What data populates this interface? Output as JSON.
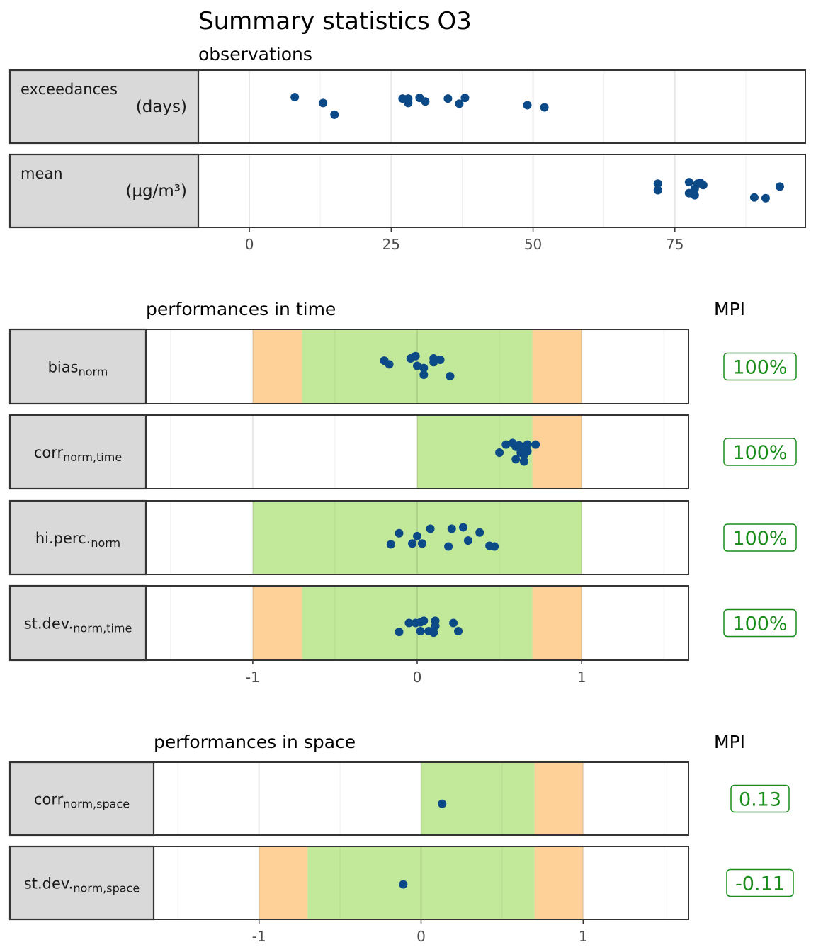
{
  "title": "Summary statistics O3",
  "chart_data": [
    {
      "type": "scatter",
      "title": "observations",
      "x_ticks": [
        "0",
        "25",
        "50",
        "75"
      ],
      "tick_values": [
        0,
        25,
        50,
        75
      ],
      "xlim": [
        -9,
        98
      ],
      "grid": true,
      "panels": [
        {
          "label": "exceedances",
          "unit": "(days)",
          "points": [
            {
              "x": 8,
              "j": 0.37
            },
            {
              "x": 13,
              "j": 0.45
            },
            {
              "x": 15,
              "j": 0.61
            },
            {
              "x": 27,
              "j": 0.39
            },
            {
              "x": 28,
              "j": 0.39
            },
            {
              "x": 28,
              "j": 0.45
            },
            {
              "x": 30,
              "j": 0.38
            },
            {
              "x": 31,
              "j": 0.43
            },
            {
              "x": 35,
              "j": 0.39
            },
            {
              "x": 37,
              "j": 0.46
            },
            {
              "x": 38,
              "j": 0.38
            },
            {
              "x": 49,
              "j": 0.48
            },
            {
              "x": 52,
              "j": 0.51
            }
          ]
        },
        {
          "label": "mean",
          "unit": "(µg/m³)",
          "points": [
            {
              "x": 72,
              "j": 0.4
            },
            {
              "x": 72,
              "j": 0.49
            },
            {
              "x": 77.5,
              "j": 0.38
            },
            {
              "x": 77.5,
              "j": 0.53
            },
            {
              "x": 78.5,
              "j": 0.47
            },
            {
              "x": 78.5,
              "j": 0.56
            },
            {
              "x": 79,
              "j": 0.4
            },
            {
              "x": 79.5,
              "j": 0.39
            },
            {
              "x": 80,
              "j": 0.42
            },
            {
              "x": 89,
              "j": 0.59
            },
            {
              "x": 91,
              "j": 0.6
            },
            {
              "x": 93.5,
              "j": 0.44
            }
          ]
        }
      ]
    },
    {
      "type": "scatter",
      "title": "performances in time",
      "mpi_header": "MPI",
      "x_ticks": [
        "-1",
        "0",
        "1"
      ],
      "tick_values": [
        -1,
        0,
        1
      ],
      "xlim": [
        -1.65,
        1.65
      ],
      "grid": true,
      "panels": [
        {
          "label": "bias",
          "subscript": "norm",
          "mpi": "100%",
          "zones": [
            {
              "from": -1,
              "to": -0.7,
              "color": "#fdd198"
            },
            {
              "from": -0.7,
              "to": 0.7,
              "color": "#c2e899"
            },
            {
              "from": 0.7,
              "to": 1,
              "color": "#fdd198"
            }
          ],
          "points": [
            {
              "x": -0.2,
              "j": 0.42
            },
            {
              "x": -0.17,
              "j": 0.47
            },
            {
              "x": -0.04,
              "j": 0.39
            },
            {
              "x": -0.01,
              "j": 0.36
            },
            {
              "x": 0,
              "j": 0.49
            },
            {
              "x": 0.04,
              "j": 0.52
            },
            {
              "x": 0.04,
              "j": 0.61
            },
            {
              "x": 0.1,
              "j": 0.39
            },
            {
              "x": 0.1,
              "j": 0.44
            },
            {
              "x": 0.14,
              "j": 0.41
            },
            {
              "x": 0.2,
              "j": 0.63
            }
          ]
        },
        {
          "label": "corr",
          "subscript": "norm,time",
          "mpi": "100%",
          "zones": [
            {
              "from": 0,
              "to": 0.7,
              "color": "#c2e899"
            },
            {
              "from": 0.7,
              "to": 1,
              "color": "#fdd198"
            }
          ],
          "points": [
            {
              "x": 0.5,
              "j": 0.51
            },
            {
              "x": 0.54,
              "j": 0.4
            },
            {
              "x": 0.58,
              "j": 0.38
            },
            {
              "x": 0.6,
              "j": 0.43
            },
            {
              "x": 0.6,
              "j": 0.6
            },
            {
              "x": 0.62,
              "j": 0.41
            },
            {
              "x": 0.63,
              "j": 0.46
            },
            {
              "x": 0.63,
              "j": 0.51
            },
            {
              "x": 0.65,
              "j": 0.49
            },
            {
              "x": 0.65,
              "j": 0.54
            },
            {
              "x": 0.65,
              "j": 0.63
            },
            {
              "x": 0.67,
              "j": 0.4
            },
            {
              "x": 0.67,
              "j": 0.49
            },
            {
              "x": 0.72,
              "j": 0.4
            }
          ]
        },
        {
          "label": "hi.perc.",
          "subscript": "norm",
          "mpi": "100%",
          "zones": [
            {
              "from": -1,
              "to": 1,
              "color": "#c2e899"
            }
          ],
          "points": [
            {
              "x": -0.16,
              "j": 0.59
            },
            {
              "x": -0.11,
              "j": 0.44
            },
            {
              "x": -0.03,
              "j": 0.58
            },
            {
              "x": 0,
              "j": 0.48
            },
            {
              "x": 0.03,
              "j": 0.58
            },
            {
              "x": 0.08,
              "j": 0.38
            },
            {
              "x": 0.19,
              "j": 0.62
            },
            {
              "x": 0.21,
              "j": 0.38
            },
            {
              "x": 0.28,
              "j": 0.36
            },
            {
              "x": 0.31,
              "j": 0.54
            },
            {
              "x": 0.38,
              "j": 0.43
            },
            {
              "x": 0.44,
              "j": 0.61
            },
            {
              "x": 0.47,
              "j": 0.62
            }
          ]
        },
        {
          "label": "st.dev.",
          "subscript": "norm,time",
          "mpi": "100%",
          "zones": [
            {
              "from": -1,
              "to": -0.7,
              "color": "#fdd198"
            },
            {
              "from": -0.7,
              "to": 0.7,
              "color": "#c2e899"
            },
            {
              "from": 0.7,
              "to": 1,
              "color": "#fdd198"
            }
          ],
          "points": [
            {
              "x": -0.11,
              "j": 0.62
            },
            {
              "x": -0.05,
              "j": 0.5
            },
            {
              "x": -0.01,
              "j": 0.5
            },
            {
              "x": 0.02,
              "j": 0.61
            },
            {
              "x": 0.02,
              "j": 0.49
            },
            {
              "x": 0.04,
              "j": 0.47
            },
            {
              "x": 0.07,
              "j": 0.61
            },
            {
              "x": 0.1,
              "j": 0.63
            },
            {
              "x": 0.11,
              "j": 0.54
            },
            {
              "x": 0.11,
              "j": 0.47
            },
            {
              "x": 0.22,
              "j": 0.5
            },
            {
              "x": 0.25,
              "j": 0.61
            }
          ]
        }
      ]
    },
    {
      "type": "scatter",
      "title": "performances in space",
      "mpi_header": "MPI",
      "x_ticks": [
        "-1",
        "0",
        "1"
      ],
      "tick_values": [
        -1,
        0,
        1
      ],
      "xlim": [
        -1.65,
        1.65
      ],
      "grid": true,
      "panels": [
        {
          "label": "corr",
          "subscript": "norm,space",
          "mpi": "0.13",
          "zones": [
            {
              "from": 0,
              "to": 0.7,
              "color": "#c2e899"
            },
            {
              "from": 0.7,
              "to": 1,
              "color": "#fdd198"
            }
          ],
          "points": [
            {
              "x": 0.13,
              "j": 0.57
            }
          ]
        },
        {
          "label": "st.dev.",
          "subscript": "norm,space",
          "mpi": "-0.11",
          "zones": [
            {
              "from": -1,
              "to": -0.7,
              "color": "#fdd198"
            },
            {
              "from": -0.7,
              "to": 0.7,
              "color": "#c2e899"
            },
            {
              "from": 0.7,
              "to": 1,
              "color": "#fdd198"
            }
          ],
          "points": [
            {
              "x": -0.11,
              "j": 0.52
            }
          ]
        }
      ]
    }
  ],
  "colors": {
    "point": "#0c4a87",
    "strip": "#d9d9d9",
    "strip_border": "#333333",
    "panel_border": "#333333",
    "grid": "#ebebeb",
    "mpi_good": "#1a8c1a",
    "axis_text": "#4d4d4d"
  }
}
